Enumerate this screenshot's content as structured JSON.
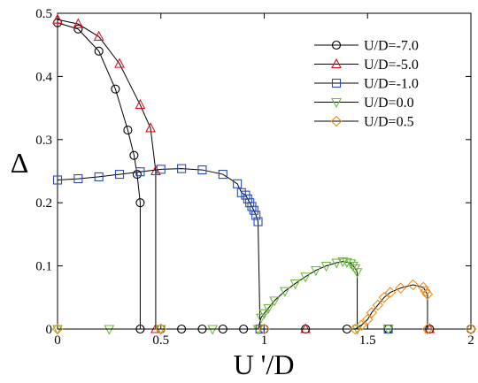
{
  "chart_data": {
    "type": "line",
    "title": "",
    "xlabel": "U '/D",
    "ylabel": "Δ",
    "xlim": [
      0,
      2
    ],
    "ylim": [
      0,
      0.5
    ],
    "xticks": [
      0,
      0.5,
      1,
      1.5,
      2
    ],
    "xtick_labels": [
      "0",
      "0.5",
      "1",
      "1.5",
      "2"
    ],
    "yticks": [
      0,
      0.1,
      0.2,
      0.3,
      0.4,
      0.5
    ],
    "ytick_labels": [
      "0",
      "0.1",
      "0.2",
      "0.3",
      "0.4",
      "0.5"
    ],
    "grid": false,
    "legend_position": "top-right",
    "series": [
      {
        "name": "U/D=-7.0",
        "color": "#000000",
        "marker": "circle",
        "x": [
          0,
          0.1,
          0.2,
          0.28,
          0.34,
          0.37,
          0.385,
          0.4,
          0.4,
          0.5,
          0.6,
          0.7,
          0.8,
          0.9,
          1.0,
          1.2,
          1.4,
          1.6,
          1.8,
          2.0
        ],
        "y": [
          0.485,
          0.475,
          0.44,
          0.38,
          0.315,
          0.275,
          0.245,
          0.2,
          0,
          0,
          0,
          0,
          0,
          0,
          0,
          0,
          0,
          0,
          0,
          0
        ]
      },
      {
        "name": "U/D=-5.0",
        "color": "#e0101c",
        "marker": "triangle-up",
        "x": [
          0,
          0.1,
          0.2,
          0.3,
          0.4,
          0.45,
          0.475,
          0.475,
          1.2,
          1.8
        ],
        "y": [
          0.49,
          0.483,
          0.463,
          0.42,
          0.355,
          0.318,
          0.25,
          0,
          0,
          0
        ]
      },
      {
        "name": "U/D=-1.0",
        "color": "#2a4bb5",
        "marker": "square",
        "x": [
          0,
          0.1,
          0.2,
          0.3,
          0.4,
          0.5,
          0.6,
          0.7,
          0.8,
          0.87,
          0.89,
          0.91,
          0.92,
          0.93,
          0.94,
          0.95,
          0.96,
          0.97,
          0.98,
          0.98,
          1.6
        ],
        "y": [
          0.236,
          0.238,
          0.241,
          0.245,
          0.249,
          0.253,
          0.254,
          0.252,
          0.245,
          0.23,
          0.216,
          0.212,
          0.206,
          0.2,
          0.194,
          0.188,
          0.18,
          0.17,
          0,
          0,
          0
        ]
      },
      {
        "name": "U/D=0.0",
        "color": "#6cba3f",
        "marker": "triangle-down",
        "x": [
          0,
          0.25,
          0.5,
          0.75,
          0.97,
          0.985,
          1.0,
          1.02,
          1.05,
          1.1,
          1.15,
          1.2,
          1.25,
          1.3,
          1.35,
          1.38,
          1.4,
          1.42,
          1.43,
          1.44,
          1.45,
          1.45,
          1.6
        ],
        "y": [
          0,
          0,
          0,
          0,
          0,
          0.018,
          0.025,
          0.033,
          0.045,
          0.06,
          0.072,
          0.083,
          0.093,
          0.1,
          0.105,
          0.107,
          0.106,
          0.104,
          0.1,
          0.096,
          0.09,
          0,
          0
        ]
      },
      {
        "name": "U/D=0.5",
        "color": "#f08c1c",
        "marker": "diamond",
        "x": [
          0,
          0.5,
          1.0,
          1.44,
          1.47,
          1.5,
          1.52,
          1.55,
          1.58,
          1.61,
          1.66,
          1.72,
          1.77,
          1.78,
          1.79,
          1.79,
          2.0
        ],
        "y": [
          0,
          0,
          0,
          0,
          0.006,
          0.015,
          0.026,
          0.038,
          0.05,
          0.058,
          0.065,
          0.07,
          0.066,
          0.06,
          0.055,
          0,
          0
        ]
      }
    ]
  }
}
